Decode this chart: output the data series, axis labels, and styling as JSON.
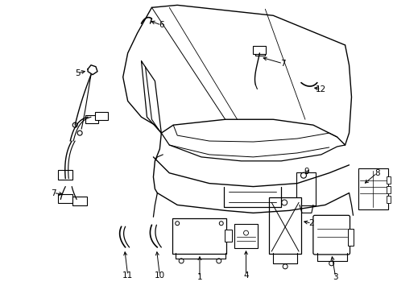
{
  "background_color": "#ffffff",
  "fig_width": 4.89,
  "fig_height": 3.6,
  "dpi": 100,
  "lc": "#000000",
  "lw": 1.0
}
